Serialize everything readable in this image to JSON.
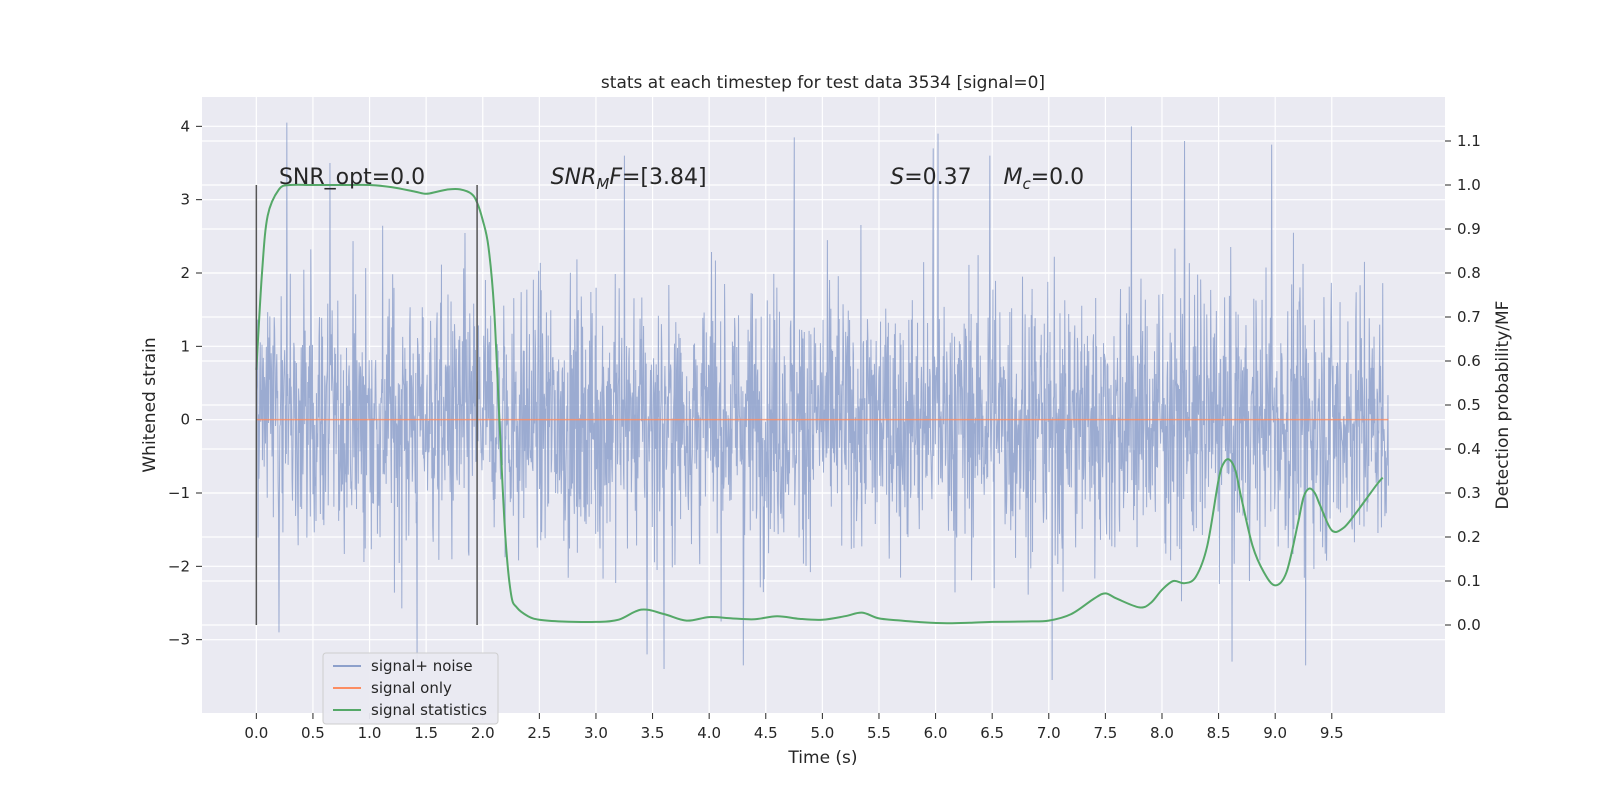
{
  "chart_data": {
    "type": "line",
    "title": "stats at each timestep for test data 3534 [signal=0]",
    "xlabel": "Time (s)",
    "ylabel": "Whitened strain",
    "y2label": "Detection probability/MF",
    "xlim": [
      -0.48,
      10.5
    ],
    "ylim": [
      -4.0,
      4.4
    ],
    "y2lim": [
      -0.2,
      1.2
    ],
    "xticks": [
      0.0,
      0.5,
      1.0,
      1.5,
      2.0,
      2.5,
      3.0,
      3.5,
      4.0,
      4.5,
      5.0,
      5.5,
      6.0,
      6.5,
      7.0,
      7.5,
      8.0,
      8.5,
      9.0,
      9.5
    ],
    "xtick_labels": [
      "0.0",
      "0.5",
      "1.0",
      "1.5",
      "2.0",
      "2.5",
      "3.0",
      "3.5",
      "4.0",
      "4.5",
      "5.0",
      "5.5",
      "6.0",
      "6.5",
      "7.0",
      "7.5",
      "8.0",
      "8.5",
      "9.0",
      "9.5"
    ],
    "yticks": [
      -3,
      -2,
      -1,
      0,
      1,
      2,
      3,
      4
    ],
    "ytick_labels": [
      "−3",
      "−2",
      "−1",
      "0",
      "1",
      "2",
      "3",
      "4"
    ],
    "y2ticks": [
      0.0,
      0.1,
      0.2,
      0.3,
      0.4,
      0.5,
      0.6,
      0.7,
      0.8,
      0.9,
      1.0,
      1.1
    ],
    "y2tick_labels": [
      "0.0",
      "0.1",
      "0.2",
      "0.3",
      "0.4",
      "0.5",
      "0.6",
      "0.7",
      "0.8",
      "0.9",
      "1.0",
      "1.1"
    ],
    "grid": true,
    "legend_position": "lower-left",
    "annotations": [
      {
        "id": "snr-opt",
        "text": "SNR_opt=0.0",
        "x": 0.2
      },
      {
        "id": "snr-mf",
        "text": "SNR_MF=[3.84]",
        "x": 2.6
      },
      {
        "id": "s-value",
        "text": "S=0.37",
        "x": 5.6
      },
      {
        "id": "mc-value",
        "text": "M_c=0.0",
        "x": 6.6
      }
    ],
    "vlines": [
      {
        "x": 0.0,
        "ymin": -2.8,
        "ymax": 3.2
      },
      {
        "x": 1.95,
        "ymin": -2.8,
        "ymax": 3.2
      }
    ],
    "series": [
      {
        "name": "signal+ noise",
        "axis": "left",
        "color": "#8da0cb",
        "x_range": [
          0.0,
          10.0
        ],
        "envelope": {
          "p99_low": -2.3,
          "p99_high": 2.3,
          "min": -3.6,
          "max": 4.05
        },
        "peaks": [
          {
            "x": 0.27,
            "y": 4.05
          },
          {
            "x": 7.73,
            "y": 4.0
          },
          {
            "x": 6.02,
            "y": 3.9
          },
          {
            "x": 4.75,
            "y": 3.85
          },
          {
            "x": 8.2,
            "y": 3.8
          },
          {
            "x": 0.65,
            "y": 3.5
          },
          {
            "x": 6.48,
            "y": 3.6
          },
          {
            "x": 3.25,
            "y": 3.6
          },
          {
            "x": 8.97,
            "y": 3.75
          },
          {
            "x": 5.98,
            "y": 3.7
          },
          {
            "x": 7.03,
            "y": -3.55
          },
          {
            "x": 3.6,
            "y": -3.4
          },
          {
            "x": 4.3,
            "y": -3.35
          },
          {
            "x": 9.27,
            "y": -3.35
          },
          {
            "x": 8.62,
            "y": -3.3
          },
          {
            "x": 1.42,
            "y": -3.3
          },
          {
            "x": 3.45,
            "y": -3.2
          },
          {
            "x": 0.2,
            "y": -2.9
          }
        ]
      },
      {
        "name": "signal only",
        "axis": "left",
        "color": "#fc8d62",
        "x": [
          0.0,
          10.0
        ],
        "values": [
          0.0,
          0.0
        ]
      },
      {
        "name": "signal statistics",
        "axis": "right",
        "color": "#55a868",
        "x": [
          0.0,
          0.05,
          0.1,
          0.2,
          0.3,
          0.5,
          0.8,
          1.0,
          1.2,
          1.4,
          1.5,
          1.6,
          1.7,
          1.8,
          1.9,
          1.95,
          2.0,
          2.05,
          2.1,
          2.15,
          2.2,
          2.25,
          2.3,
          2.4,
          2.5,
          2.7,
          3.0,
          3.2,
          3.4,
          3.6,
          3.8,
          4.0,
          4.2,
          4.4,
          4.6,
          4.8,
          5.0,
          5.2,
          5.35,
          5.5,
          5.7,
          5.9,
          6.1,
          6.3,
          6.5,
          6.8,
          7.0,
          7.2,
          7.4,
          7.5,
          7.6,
          7.8,
          7.9,
          8.0,
          8.1,
          8.2,
          8.3,
          8.4,
          8.5,
          8.55,
          8.6,
          8.65,
          8.7,
          8.8,
          8.9,
          9.0,
          9.1,
          9.2,
          9.25,
          9.3,
          9.35,
          9.4,
          9.5,
          9.6,
          9.7,
          9.8,
          9.9,
          9.95
        ],
        "values": [
          0.58,
          0.8,
          0.93,
          0.99,
          1.0,
          1.0,
          1.0,
          1.0,
          0.995,
          0.985,
          0.98,
          0.985,
          0.99,
          0.99,
          0.98,
          0.96,
          0.92,
          0.86,
          0.72,
          0.45,
          0.2,
          0.07,
          0.04,
          0.02,
          0.012,
          0.008,
          0.007,
          0.012,
          0.035,
          0.025,
          0.01,
          0.018,
          0.015,
          0.013,
          0.02,
          0.014,
          0.012,
          0.02,
          0.028,
          0.015,
          0.01,
          0.006,
          0.004,
          0.005,
          0.007,
          0.008,
          0.01,
          0.025,
          0.06,
          0.072,
          0.06,
          0.04,
          0.05,
          0.08,
          0.1,
          0.095,
          0.11,
          0.18,
          0.33,
          0.37,
          0.375,
          0.35,
          0.29,
          0.18,
          0.12,
          0.09,
          0.12,
          0.23,
          0.29,
          0.31,
          0.3,
          0.27,
          0.215,
          0.22,
          0.25,
          0.285,
          0.32,
          0.335
        ]
      }
    ]
  }
}
